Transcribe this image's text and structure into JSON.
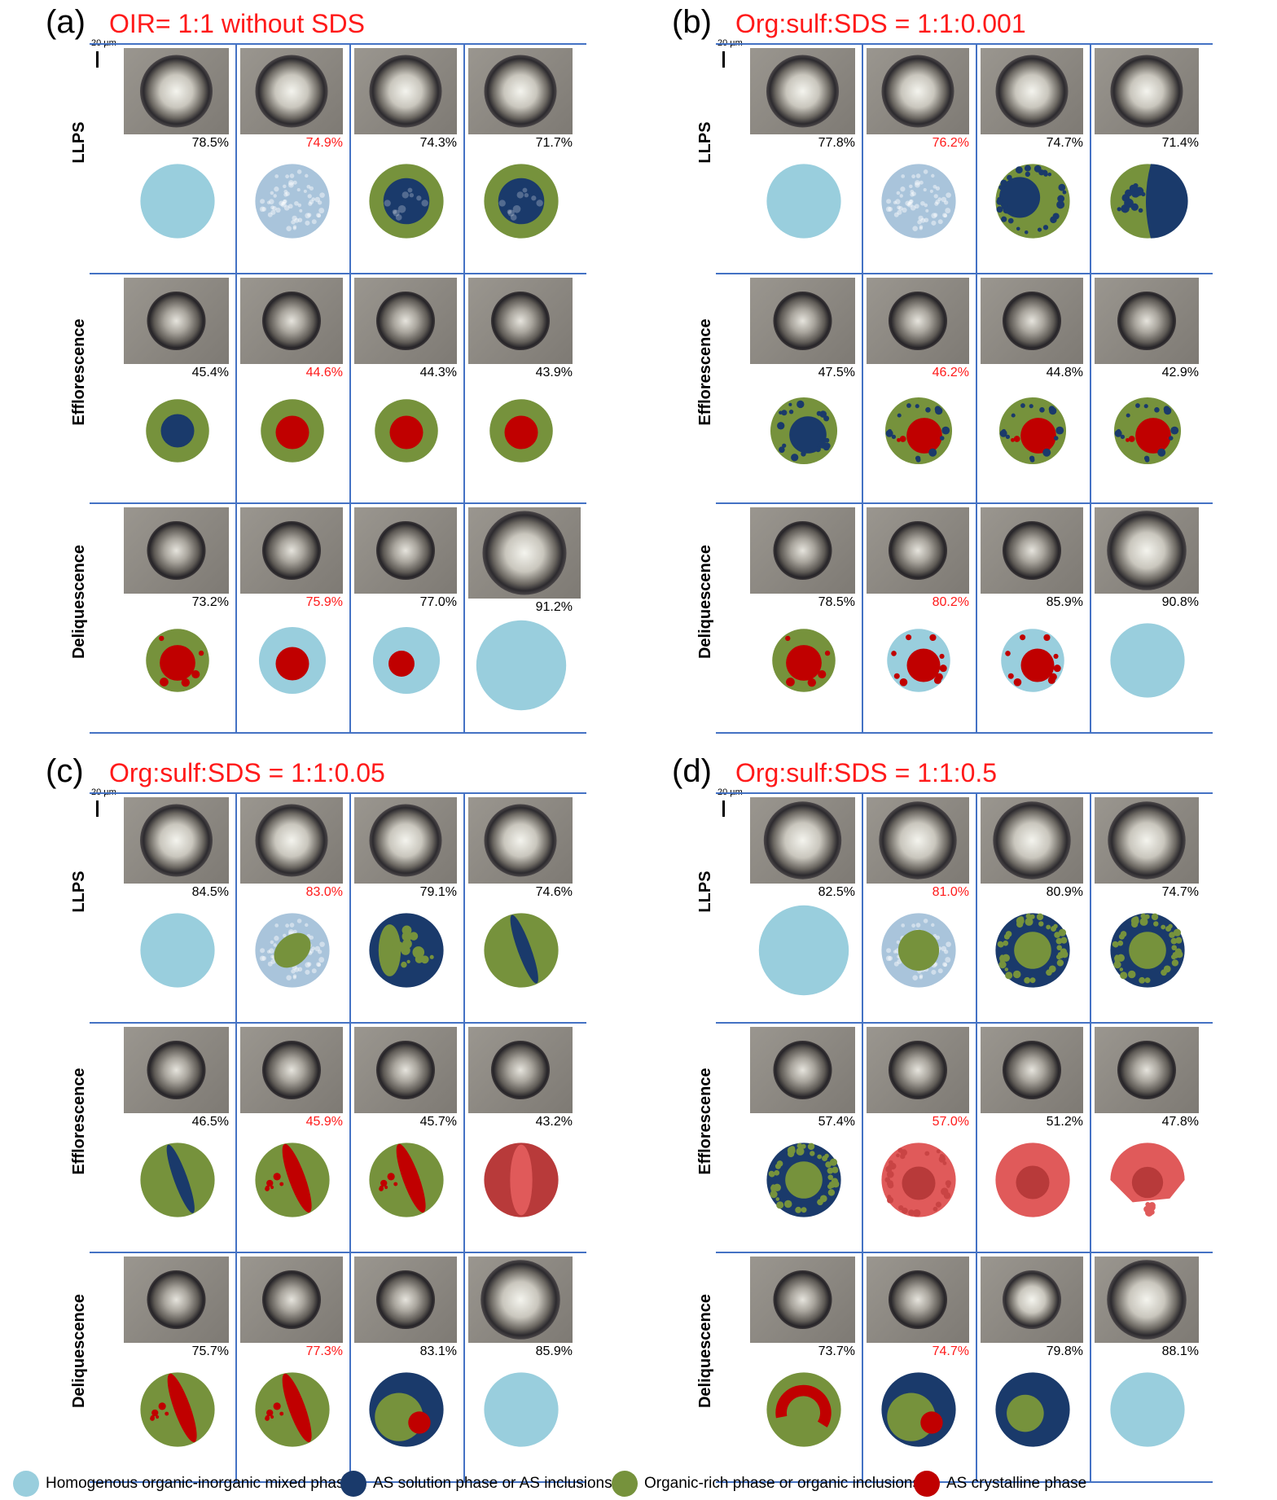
{
  "colors": {
    "homogeneous": "#99cedd",
    "as_solution": "#1a3a6b",
    "organic": "#76923c",
    "crystal": "#c00000",
    "crystal_light": "#e05a5a",
    "photo_bg": "#8a8680",
    "grid_line": "#4472c4",
    "highlight_text": "#ff1a1a"
  },
  "scale_label": "20 µm",
  "row_labels": [
    "LLPS",
    "Efflorescence",
    "Deliquescence"
  ],
  "panels": [
    {
      "label": "(a)",
      "title": "OIR= 1:1 without SDS",
      "rh": [
        [
          "78.5%",
          "74.9%",
          "74.3%",
          "71.7%"
        ],
        [
          "45.4%",
          "44.6%",
          "44.3%",
          "43.9%"
        ],
        [
          "73.2%",
          "75.9%",
          "77.0%",
          "91.2%"
        ]
      ],
      "schematics": [
        [
          "homogeneous",
          "homogeneous-textured",
          "core-shell-blue",
          "core-shell-blue"
        ],
        [
          "core-shell-blue-small",
          "core-red",
          "core-red",
          "core-red"
        ],
        [
          "green-red-spots",
          "blue-red",
          "blue-red-small",
          "homogeneous-large"
        ]
      ]
    },
    {
      "label": "(b)",
      "title": "Org:sulf:SDS = 1:1:0.001",
      "rh": [
        [
          "77.8%",
          "76.2%",
          "74.7%",
          "71.4%"
        ],
        [
          "47.5%",
          "46.2%",
          "44.8%",
          "42.9%"
        ],
        [
          "78.5%",
          "80.2%",
          "85.9%",
          "90.8%"
        ]
      ],
      "schematics": [
        [
          "homogeneous",
          "homogeneous-textured",
          "partial-blue",
          "half-blue"
        ],
        [
          "green-blue-dots",
          "green-red-dots",
          "green-red-dots",
          "green-red-dots"
        ],
        [
          "green-red-spots",
          "blue-red-dots",
          "blue-red-dots",
          "homogeneous"
        ]
      ]
    },
    {
      "label": "(c)",
      "title": "Org:sulf:SDS = 1:1:0.05",
      "rh": [
        [
          "84.5%",
          "83.0%",
          "79.1%",
          "74.6%"
        ],
        [
          "46.5%",
          "45.9%",
          "45.7%",
          "43.2%"
        ],
        [
          "75.7%",
          "77.3%",
          "83.1%",
          "85.9%"
        ]
      ],
      "schematics": [
        [
          "homogeneous",
          "textured-green",
          "blue-green-patches",
          "green-blue-band"
        ],
        [
          "green-blue-band",
          "green-red-band",
          "green-red-band",
          "crystal-ball"
        ],
        [
          "green-red-band",
          "green-red-band",
          "blue-green-red",
          "homogeneous"
        ]
      ]
    },
    {
      "label": "(d)",
      "title": "Org:sulf:SDS = 1:1:0.5",
      "rh": [
        [
          "82.5%",
          "81.0%",
          "80.9%",
          "74.7%"
        ],
        [
          "57.4%",
          "57.0%",
          "51.2%",
          "47.8%"
        ],
        [
          "73.7%",
          "74.7%",
          "79.8%",
          "88.1%"
        ]
      ],
      "schematics": [
        [
          "homogeneous-large",
          "textured-green-core",
          "blue-green-core-dots",
          "blue-green-core-dots"
        ],
        [
          "blue-green-core-dots",
          "red-core-dots",
          "crystal-blob",
          "crystal-blob-broken"
        ],
        [
          "green-red-ring",
          "blue-green-red",
          "blue-green",
          "homogeneous"
        ]
      ]
    }
  ],
  "highlight_column": 1,
  "legend": [
    {
      "label": "Homogenous organic-inorganic mixed phase",
      "color_key": "homogeneous"
    },
    {
      "label": "AS solution phase or AS inclusions",
      "color_key": "as_solution"
    },
    {
      "label": "Organic-rich phase or organic inclusions",
      "color_key": "organic"
    },
    {
      "label": "AS crystalline phase",
      "color_key": "crystal"
    }
  ]
}
